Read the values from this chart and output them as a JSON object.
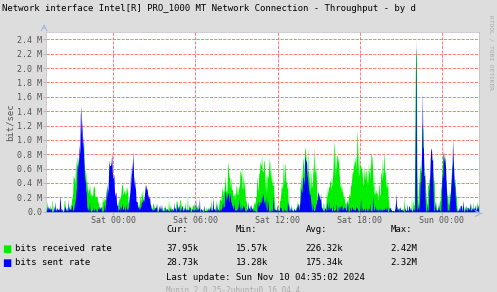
{
  "title": "Network interface Intel[R] PRO_1000 MT Network Connection - Throughput - by d",
  "ylabel": "bit/sec",
  "right_label": "RTOOL / TOBI OETIKER",
  "bg_color": "#DDDDDD",
  "plot_bg_color": "#FFFFFF",
  "x_ticks_labels": [
    "Sat 00:00",
    "Sat 06:00",
    "Sat 12:00",
    "Sat 18:00",
    "Sun 00:00"
  ],
  "y_ticks_labels": [
    "0.0",
    "0.2 M",
    "0.4 M",
    "0.6 M",
    "0.8 M",
    "1.0 M",
    "1.2 M",
    "1.4 M",
    "1.6 M",
    "1.8 M",
    "2.0 M",
    "2.2 M",
    "2.4 M"
  ],
  "legend_items": [
    "bits received rate",
    "bits sent rate"
  ],
  "cur_values": [
    "37.95k",
    "28.73k"
  ],
  "min_values": [
    "15.57k",
    "13.28k"
  ],
  "avg_values": [
    "226.32k",
    "175.34k"
  ],
  "max_values": [
    "2.42M",
    "2.32M"
  ],
  "last_update": "Last update: Sun Nov 10 04:35:02 2024",
  "munin_version": "Munin 2.0.25-2ubuntu0.16.04.4",
  "received_color": "#00EE00",
  "sent_color": "#0000FF",
  "x_tick_positions": [
    0.155,
    0.345,
    0.535,
    0.725,
    0.915
  ]
}
